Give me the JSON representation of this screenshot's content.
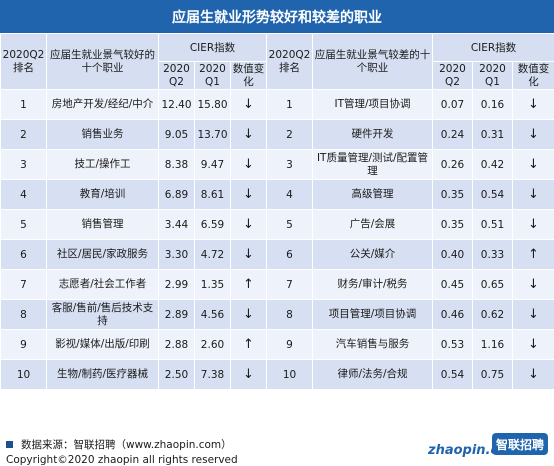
{
  "title": "应届生就业形势较好和较差的职业",
  "headers": {
    "rank": "2020Q2排名",
    "left_occupation": "应届生就业景气较好的十个职业",
    "right_occupation": "应届生就业景气较差的十个职业",
    "cier": "CIER指数",
    "q2": "2020 Q2",
    "q1": "2020 Q1",
    "change": "数值变化"
  },
  "rows": [
    {
      "rank": "1",
      "good_job": "房地产开发/经纪/中介",
      "good_q2": "12.40",
      "good_q1": "15.80",
      "good_change": "↓",
      "bad_rank": "1",
      "bad_job": "IT管理/项目协调",
      "bad_q2": "0.07",
      "bad_q1": "0.16",
      "bad_change": "↓"
    },
    {
      "rank": "2",
      "good_job": "销售业务",
      "good_q2": "9.05",
      "good_q1": "13.70",
      "good_change": "↓",
      "bad_rank": "2",
      "bad_job": "硬件开发",
      "bad_q2": "0.24",
      "bad_q1": "0.31",
      "bad_change": "↓"
    },
    {
      "rank": "3",
      "good_job": "技工/操作工",
      "good_q2": "8.38",
      "good_q1": "9.47",
      "good_change": "↓",
      "bad_rank": "3",
      "bad_job": "IT质量管理/测试/配置管理",
      "bad_q2": "0.26",
      "bad_q1": "0.42",
      "bad_change": "↓"
    },
    {
      "rank": "4",
      "good_job": "教育/培训",
      "good_q2": "6.89",
      "good_q1": "8.61",
      "good_change": "↓",
      "bad_rank": "4",
      "bad_job": "高级管理",
      "bad_q2": "0.35",
      "bad_q1": "0.54",
      "bad_change": "↓"
    },
    {
      "rank": "5",
      "good_job": "销售管理",
      "good_q2": "3.44",
      "good_q1": "6.59",
      "good_change": "↓",
      "bad_rank": "5",
      "bad_job": "广告/会展",
      "bad_q2": "0.35",
      "bad_q1": "0.51",
      "bad_change": "↓"
    },
    {
      "rank": "6",
      "good_job": "社区/居民/家政服务",
      "good_q2": "3.30",
      "good_q1": "4.72",
      "good_change": "↓",
      "bad_rank": "6",
      "bad_job": "公关/媒介",
      "bad_q2": "0.40",
      "bad_q1": "0.33",
      "bad_change": "↑"
    },
    {
      "rank": "7",
      "good_job": "志愿者/社会工作者",
      "good_q2": "2.99",
      "good_q1": "1.35",
      "good_change": "↑",
      "bad_rank": "7",
      "bad_job": "财务/审计/税务",
      "bad_q2": "0.45",
      "bad_q1": "0.65",
      "bad_change": "↓"
    },
    {
      "rank": "8",
      "good_job": "客服/售前/售后技术支持",
      "good_q2": "2.89",
      "good_q1": "4.56",
      "good_change": "↓",
      "bad_rank": "8",
      "bad_job": "项目管理/项目协调",
      "bad_q2": "0.46",
      "bad_q1": "0.62",
      "bad_change": "↓"
    },
    {
      "rank": "9",
      "good_job": "影视/媒体/出版/印刷",
      "good_q2": "2.88",
      "good_q1": "2.60",
      "good_change": "↑",
      "bad_rank": "9",
      "bad_job": "汽车销售与服务",
      "bad_q2": "0.53",
      "bad_q1": "1.16",
      "bad_change": "↓"
    },
    {
      "rank": "10",
      "good_job": "生物/制药/医疗器械",
      "good_q2": "2.50",
      "good_q1": "7.38",
      "good_change": "↓",
      "bad_rank": "10",
      "bad_job": "律师/法务/合规",
      "bad_q2": "0.54",
      "bad_q1": "0.75",
      "bad_change": "↓"
    }
  ],
  "footer": {
    "source": "数据来源：智联招聘（www.zhaopin.com）",
    "copyright": "Copyright©2020 zhaopin all rights reserved",
    "logo_en": "zhaopin.com",
    "logo_cn": "智联招聘"
  }
}
